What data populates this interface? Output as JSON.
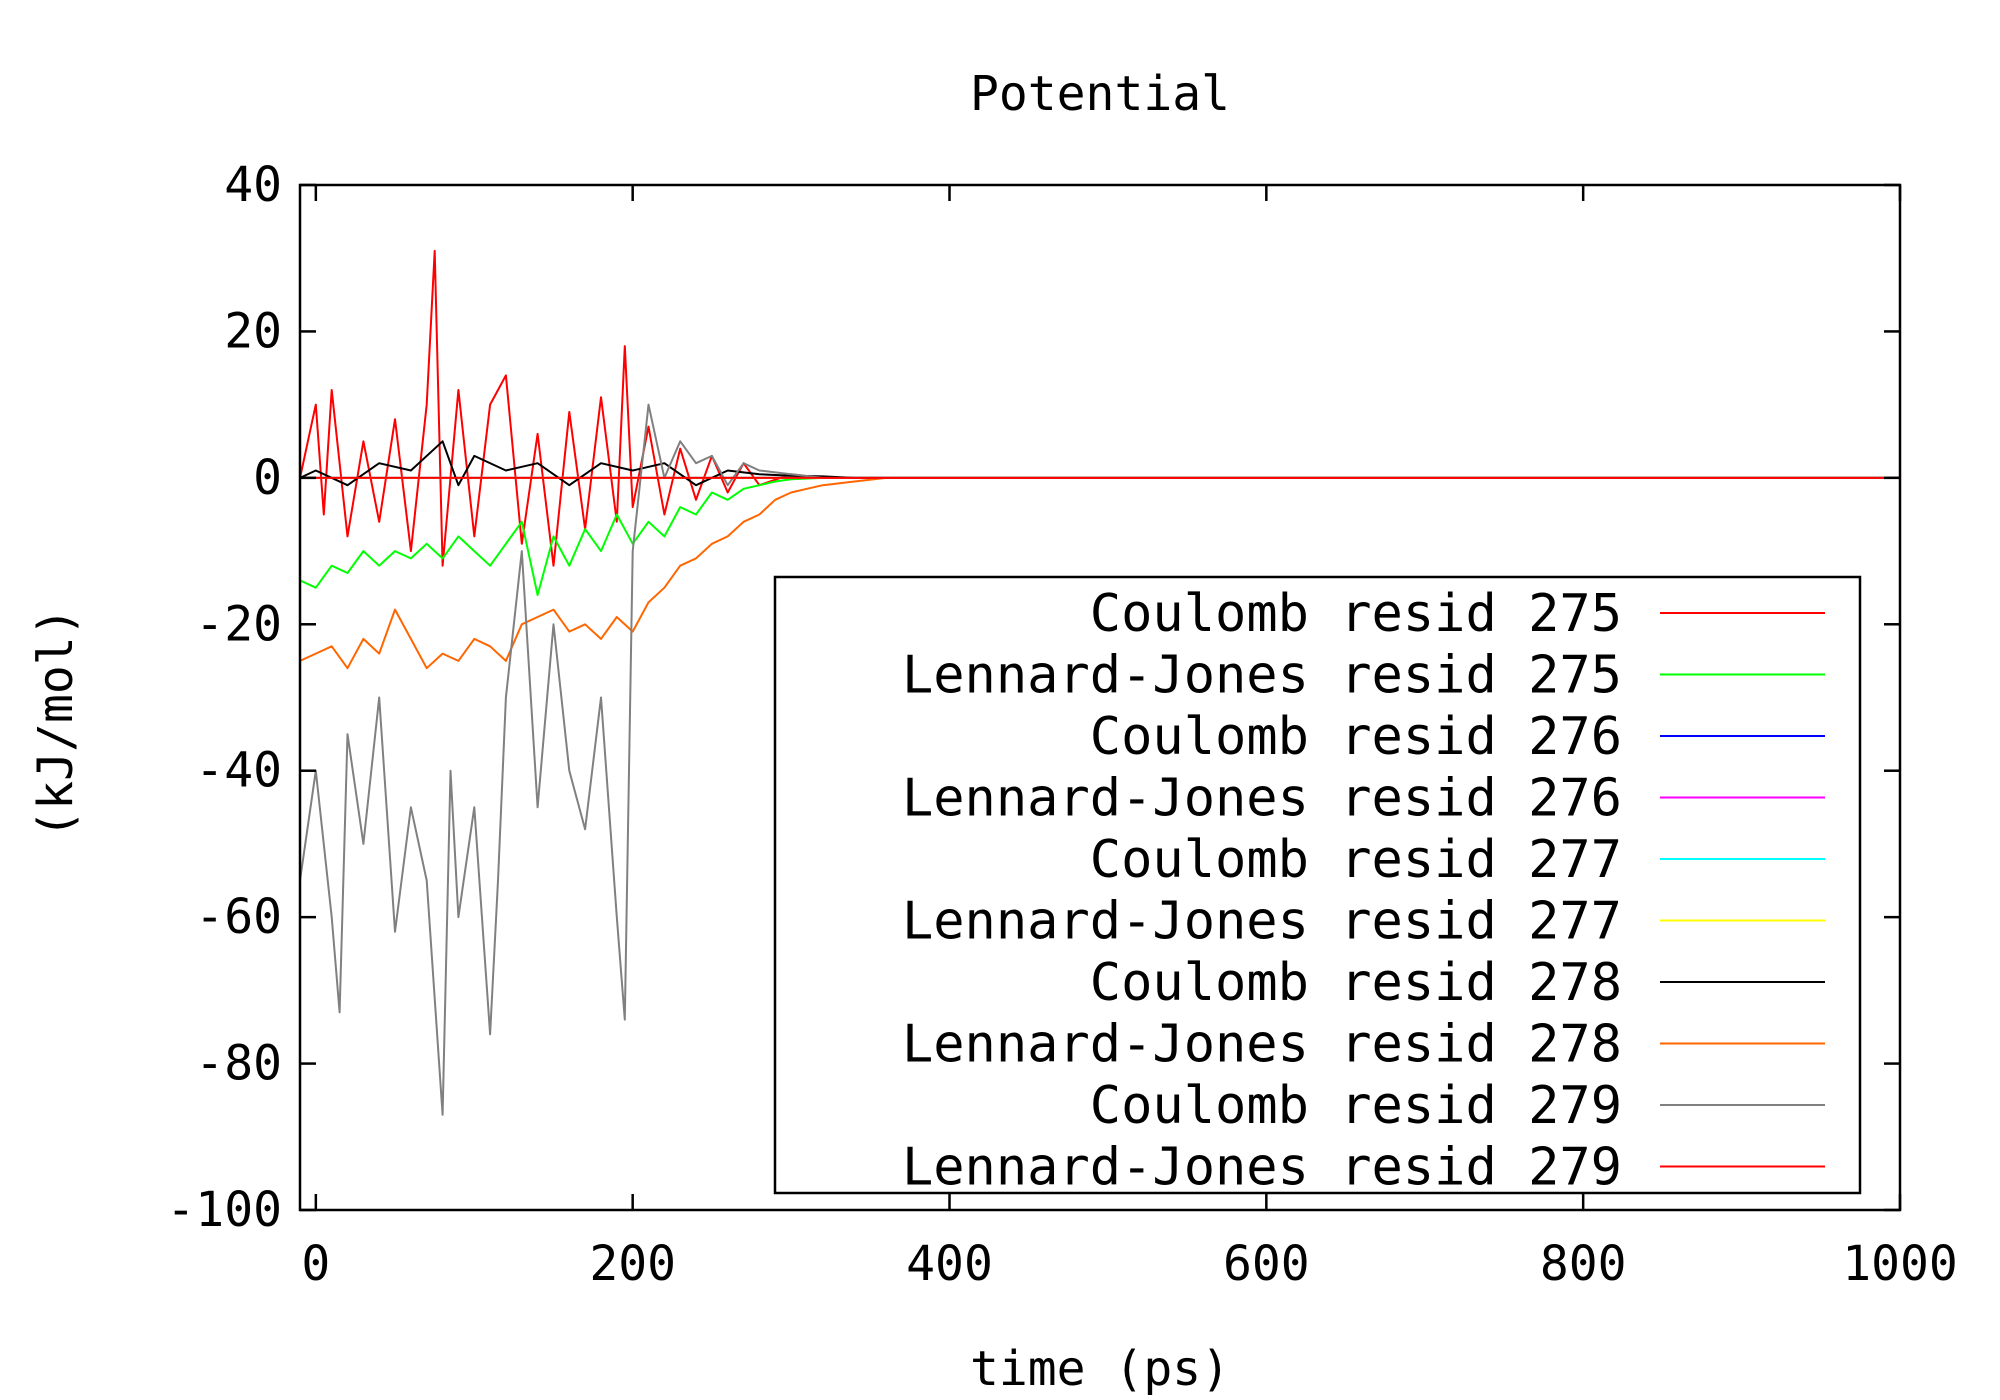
{
  "chart_data": {
    "type": "line",
    "title": "Potential",
    "xlabel": "time (ps)",
    "ylabel": "(kJ/mol)",
    "xlim": [
      -10,
      1000
    ],
    "ylim": [
      -100,
      40
    ],
    "x_ticks": [
      0,
      200,
      400,
      600,
      800,
      1000
    ],
    "y_ticks": [
      -100,
      -80,
      -60,
      -40,
      -20,
      0,
      20,
      40
    ],
    "x_tick_labels": [
      "0",
      "200",
      "400",
      "600",
      "800",
      "1000"
    ],
    "y_tick_labels": [
      "-100",
      "-80",
      "-60",
      "-40",
      "-20",
      "0",
      "20",
      "40"
    ],
    "grid": false,
    "legend_position": "bottom-right",
    "series": [
      {
        "name": "Coulomb resid 275",
        "color": "#ff0000",
        "x": [
          -10,
          0,
          5,
          10,
          20,
          30,
          40,
          50,
          60,
          70,
          75,
          80,
          90,
          100,
          110,
          120,
          130,
          140,
          150,
          160,
          170,
          180,
          190,
          195,
          200,
          210,
          220,
          230,
          240,
          250,
          260,
          270,
          280,
          300,
          320,
          350,
          1000
        ],
        "y": [
          0,
          10,
          -5,
          12,
          -8,
          5,
          -6,
          8,
          -10,
          10,
          31,
          -12,
          12,
          -8,
          10,
          14,
          -9,
          6,
          -12,
          9,
          -7,
          11,
          -6,
          18,
          -4,
          7,
          -5,
          4,
          -3,
          3,
          -2,
          2,
          -1,
          0.5,
          0,
          0,
          0
        ]
      },
      {
        "name": "Lennard-Jones resid 275",
        "color": "#00ff00",
        "x": [
          -10,
          0,
          10,
          20,
          30,
          40,
          50,
          60,
          70,
          80,
          90,
          100,
          110,
          120,
          130,
          140,
          150,
          160,
          170,
          180,
          190,
          200,
          210,
          220,
          230,
          240,
          250,
          260,
          270,
          280,
          290,
          300,
          320,
          350,
          1000
        ],
        "y": [
          -14,
          -15,
          -12,
          -13,
          -10,
          -12,
          -10,
          -11,
          -9,
          -11,
          -8,
          -10,
          -12,
          -9,
          -6,
          -16,
          -8,
          -12,
          -7,
          -10,
          -5,
          -9,
          -6,
          -8,
          -4,
          -5,
          -2,
          -3,
          -1.5,
          -1,
          -0.5,
          -0.2,
          0,
          0,
          0
        ]
      },
      {
        "name": "Coulomb resid 276",
        "color": "#0000ff",
        "x": [
          -10,
          1000
        ],
        "y": [
          0,
          0
        ]
      },
      {
        "name": "Lennard-Jones resid 276",
        "color": "#ff00ff",
        "x": [
          -10,
          1000
        ],
        "y": [
          0,
          0
        ]
      },
      {
        "name": "Coulomb resid 277",
        "color": "#00ffff",
        "x": [
          -10,
          1000
        ],
        "y": [
          0,
          0
        ]
      },
      {
        "name": "Lennard-Jones resid 277",
        "color": "#ffff00",
        "x": [
          -10,
          1000
        ],
        "y": [
          0,
          0
        ]
      },
      {
        "name": "Coulomb resid 278",
        "color": "#000000",
        "x": [
          -10,
          0,
          20,
          40,
          60,
          80,
          90,
          100,
          120,
          140,
          160,
          180,
          200,
          220,
          240,
          260,
          280,
          300,
          320,
          340,
          1000
        ],
        "y": [
          0,
          1,
          -1,
          2,
          1,
          5,
          -1,
          3,
          1,
          2,
          -1,
          2,
          1,
          2,
          -1,
          1,
          0.5,
          0.3,
          0.2,
          0,
          0
        ]
      },
      {
        "name": "Lennard-Jones resid 278",
        "color": "#ff6600",
        "x": [
          -10,
          0,
          10,
          20,
          30,
          40,
          50,
          60,
          70,
          80,
          90,
          100,
          110,
          120,
          130,
          140,
          150,
          160,
          170,
          180,
          190,
          200,
          210,
          220,
          230,
          240,
          250,
          260,
          270,
          280,
          290,
          300,
          310,
          320,
          340,
          360,
          1000
        ],
        "y": [
          -25,
          -24,
          -23,
          -26,
          -22,
          -24,
          -18,
          -22,
          -26,
          -24,
          -25,
          -22,
          -23,
          -25,
          -20,
          -19,
          -18,
          -21,
          -20,
          -22,
          -19,
          -21,
          -17,
          -15,
          -12,
          -11,
          -9,
          -8,
          -6,
          -5,
          -3,
          -2,
          -1.5,
          -1,
          -0.5,
          0,
          0
        ]
      },
      {
        "name": "Coulomb resid 279",
        "color": "#808080",
        "x": [
          -10,
          0,
          10,
          15,
          20,
          30,
          40,
          50,
          60,
          70,
          80,
          85,
          90,
          100,
          110,
          115,
          120,
          130,
          140,
          150,
          160,
          170,
          180,
          190,
          195,
          200,
          210,
          220,
          230,
          240,
          250,
          260,
          270,
          280,
          300,
          320,
          1000
        ],
        "y": [
          -55,
          -40,
          -60,
          -73,
          -35,
          -50,
          -30,
          -62,
          -45,
          -55,
          -87,
          -40,
          -60,
          -45,
          -76,
          -55,
          -30,
          -10,
          -45,
          -20,
          -40,
          -48,
          -30,
          -60,
          -74,
          -10,
          10,
          0,
          5,
          2,
          3,
          -1,
          2,
          1,
          0.5,
          0,
          0
        ]
      },
      {
        "name": "Lennard-Jones resid 279",
        "color": "#ff0000",
        "x": [
          -10,
          1000
        ],
        "y": [
          0,
          0
        ]
      }
    ]
  }
}
